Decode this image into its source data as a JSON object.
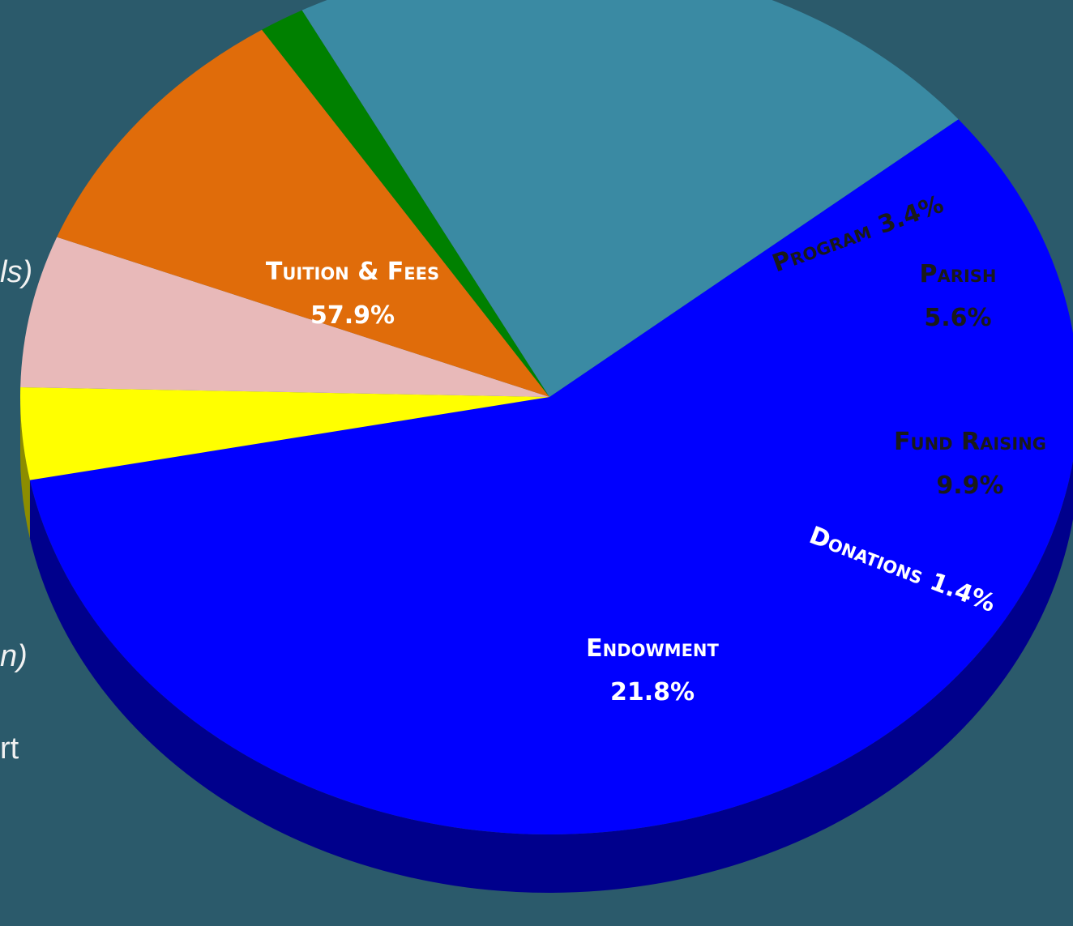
{
  "chart_data": {
    "type": "pie",
    "categories": [
      "Tuition & Fees",
      "Program",
      "Parish",
      "Fund Raising",
      "Donations",
      "Endowment"
    ],
    "values": [
      57.9,
      3.4,
      5.6,
      9.9,
      1.4,
      21.8
    ],
    "value_labels": [
      "57.9%",
      "3.4%",
      "5.6%",
      "9.9%",
      "1.4%",
      "21.8%"
    ],
    "colors": [
      "#0000ff",
      "#ffff00",
      "#e8b9b9",
      "#e06c0a",
      "#008000",
      "#3a8aa3"
    ],
    "annotations": [
      "ls)",
      "n)",
      "rt"
    ]
  }
}
